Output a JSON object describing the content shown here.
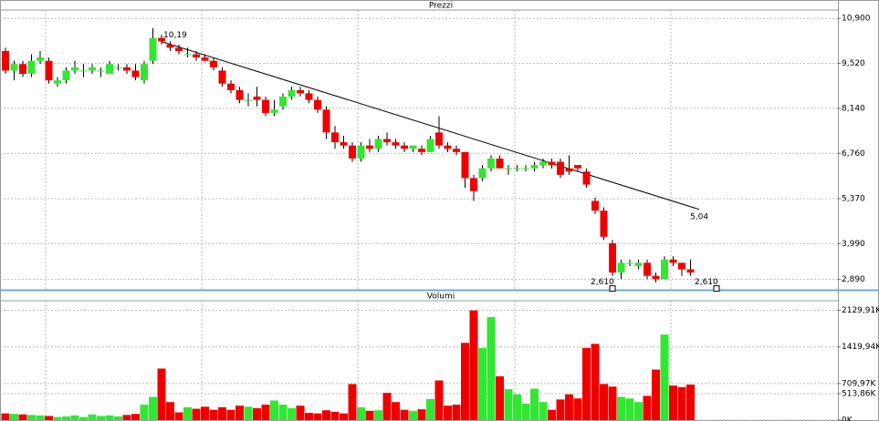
{
  "chart_data": [
    {
      "type": "candlestick",
      "title": "Prezzi",
      "up_color": "#33e633",
      "down_color": "#ee0000",
      "wick_color": "#000000",
      "open": [
        9.9,
        9.3,
        9.5,
        9.2,
        9.6,
        9.6,
        8.9,
        9.0,
        9.3,
        9.3,
        9.3,
        9.3,
        9.2,
        9.4,
        9.4,
        9.3,
        9.0,
        9.6,
        10.3,
        10.1,
        10.0,
        9.8,
        9.8,
        9.7,
        9.6,
        9.3,
        8.9,
        8.7,
        8.4,
        8.5,
        8.4,
        8.0,
        8.2,
        8.5,
        8.7,
        8.6,
        8.4,
        8.1,
        7.4,
        7.1,
        7.0,
        6.6,
        7.0,
        6.9,
        7.2,
        7.1,
        7.0,
        6.9,
        6.9,
        6.8,
        7.4,
        7.0,
        6.9,
        6.8,
        6.0,
        6.0,
        6.3,
        6.6,
        6.3,
        6.3,
        6.3,
        6.3,
        6.4,
        6.5,
        6.5,
        6.3,
        6.4,
        6.2,
        5.3,
        5.0,
        4.0,
        3.1,
        3.4,
        3.3,
        3.4,
        3.0,
        2.9,
        3.5,
        3.4,
        3.2
      ],
      "high": [
        10.0,
        9.6,
        9.6,
        9.8,
        9.9,
        9.7,
        9.1,
        9.4,
        9.6,
        9.5,
        9.5,
        9.4,
        9.6,
        9.5,
        9.5,
        9.5,
        9.6,
        10.6,
        10.4,
        10.2,
        10.1,
        10.0,
        9.9,
        9.8,
        9.7,
        9.4,
        9.0,
        8.8,
        8.6,
        8.8,
        8.5,
        8.4,
        8.6,
        8.8,
        8.8,
        8.7,
        8.5,
        8.2,
        7.6,
        7.3,
        7.1,
        7.1,
        7.2,
        7.3,
        7.4,
        7.2,
        7.1,
        7.0,
        7.0,
        7.3,
        7.9,
        7.1,
        7.0,
        6.8,
        6.1,
        6.4,
        6.7,
        6.7,
        6.4,
        6.4,
        6.4,
        6.5,
        6.6,
        6.6,
        6.6,
        6.7,
        6.4,
        6.3,
        5.4,
        5.1,
        4.1,
        3.5,
        3.5,
        3.5,
        3.5,
        3.1,
        3.6,
        3.6,
        3.4,
        3.5
      ],
      "low": [
        9.2,
        9.0,
        9.1,
        9.1,
        9.5,
        8.9,
        8.8,
        8.9,
        9.2,
        9.1,
        9.2,
        9.1,
        9.2,
        9.3,
        9.2,
        9.0,
        8.9,
        9.5,
        10.1,
        9.9,
        9.8,
        9.7,
        9.6,
        9.6,
        9.3,
        8.8,
        8.6,
        8.3,
        8.2,
        8.2,
        7.9,
        7.9,
        8.1,
        8.4,
        8.5,
        8.3,
        8.0,
        7.2,
        6.9,
        6.9,
        6.5,
        6.5,
        6.8,
        6.8,
        7.0,
        6.9,
        6.8,
        6.8,
        6.7,
        6.8,
        6.9,
        6.8,
        6.7,
        5.7,
        5.3,
        5.9,
        6.2,
        6.3,
        6.1,
        6.2,
        6.2,
        6.2,
        6.3,
        6.3,
        6.0,
        6.1,
        6.2,
        5.7,
        4.9,
        4.1,
        3.0,
        2.9,
        3.3,
        3.2,
        2.9,
        2.8,
        2.9,
        3.3,
        3.0,
        3.0
      ],
      "close": [
        9.3,
        9.5,
        9.2,
        9.6,
        9.7,
        9.0,
        9.0,
        9.3,
        9.4,
        9.3,
        9.4,
        9.3,
        9.5,
        9.4,
        9.3,
        9.1,
        9.5,
        10.3,
        10.2,
        10.0,
        9.9,
        9.8,
        9.7,
        9.6,
        9.4,
        8.9,
        8.7,
        8.4,
        8.4,
        8.4,
        8.0,
        8.1,
        8.5,
        8.7,
        8.6,
        8.4,
        8.1,
        7.4,
        7.1,
        7.0,
        6.6,
        7.0,
        6.9,
        7.2,
        7.1,
        7.0,
        6.9,
        7.0,
        6.8,
        7.2,
        7.0,
        6.9,
        6.8,
        6.0,
        5.6,
        6.3,
        6.6,
        6.3,
        6.3,
        6.3,
        6.3,
        6.4,
        6.5,
        6.4,
        6.1,
        6.2,
        6.3,
        5.8,
        5.0,
        4.2,
        3.1,
        3.4,
        3.4,
        3.4,
        3.0,
        2.9,
        3.5,
        3.4,
        3.2,
        3.1
      ],
      "ylim": [
        2.6,
        11.13
      ],
      "yticks": [
        {
          "value": 10.9,
          "label": "10,900"
        },
        {
          "value": 9.52,
          "label": "9,520"
        },
        {
          "value": 8.14,
          "label": "8,140"
        },
        {
          "value": 6.76,
          "label": "6,760"
        },
        {
          "value": 5.37,
          "label": "5,370"
        },
        {
          "value": 3.99,
          "label": "3,990"
        },
        {
          "value": 2.89,
          "label": "2,890"
        }
      ],
      "grid": true,
      "trendline": [
        {
          "x": 18,
          "value": 10.19,
          "label": "10,19"
        },
        {
          "x": 80,
          "value": 5.04,
          "label": "5,04"
        }
      ],
      "markers": [
        {
          "x": 70,
          "value": 2.61,
          "label": "2,610"
        },
        {
          "x": 82,
          "value": 2.61,
          "label": "2,610"
        }
      ]
    },
    {
      "type": "volume",
      "title": "Volumi",
      "values": [
        130,
        120,
        110,
        100,
        90,
        80,
        60,
        70,
        90,
        60,
        110,
        80,
        90,
        70,
        100,
        120,
        300,
        450,
        1000,
        350,
        150,
        250,
        220,
        260,
        200,
        250,
        200,
        280,
        260,
        230,
        300,
        380,
        300,
        230,
        280,
        140,
        130,
        190,
        160,
        130,
        700,
        250,
        180,
        190,
        530,
        350,
        200,
        180,
        210,
        410,
        770,
        280,
        300,
        1500,
        2129.91,
        1400,
        2000,
        850,
        600,
        500,
        320,
        610,
        350,
        200,
        400,
        500,
        420,
        1400,
        1480,
        700,
        650,
        450,
        420,
        350,
        470,
        980,
        1660,
        670,
        640,
        690
      ],
      "ylim": [
        0,
        2300
      ],
      "yticks": [
        {
          "value": 2129.91,
          "label": "2129,91K"
        },
        {
          "value": 1419.94,
          "label": "1419,94K"
        },
        {
          "value": 709.97,
          "label": "709,97K"
        },
        {
          "value": 513.86,
          "label": "513,86K"
        },
        {
          "value": 0,
          "label": "0K"
        }
      ],
      "grid": true
    }
  ]
}
